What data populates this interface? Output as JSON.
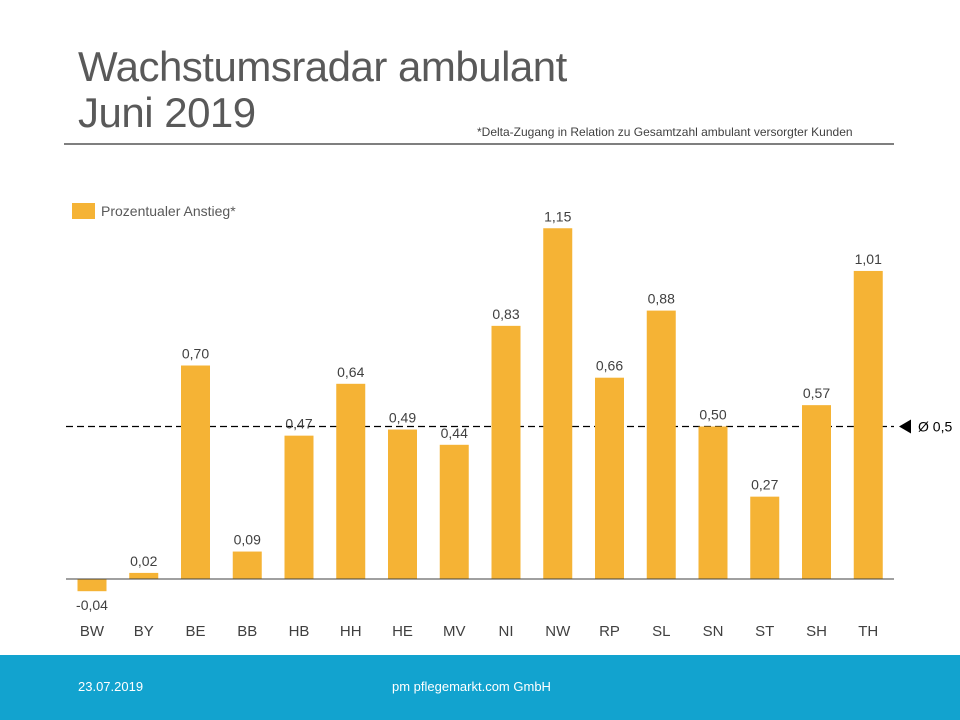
{
  "header": {
    "title_line1": "Wachstumsradar ambulant",
    "title_line2": "Juni 2019",
    "footnote": "*Delta-Zugang  in Relation zu Gesamtzahl ambulant versorgter  Kunden"
  },
  "colors": {
    "bar": "#F5B335",
    "footer": "#12A3CF",
    "text": "#404040"
  },
  "chart_data": {
    "type": "bar",
    "title": "Wachstumsradar ambulant Juni 2019",
    "xlabel": "",
    "ylabel": "",
    "ylim": [
      -0.1,
      1.25
    ],
    "grid": false,
    "legend": {
      "label": "Prozentualer Anstieg*",
      "position": "top-left"
    },
    "categories": [
      "BW",
      "BY",
      "BE",
      "BB",
      "HB",
      "HH",
      "HE",
      "MV",
      "NI",
      "NW",
      "RP",
      "SL",
      "SN",
      "ST",
      "SH",
      "TH"
    ],
    "series": [
      {
        "name": "Prozentualer Anstieg*",
        "values": [
          -0.04,
          0.02,
          0.7,
          0.09,
          0.47,
          0.64,
          0.49,
          0.44,
          0.83,
          1.15,
          0.66,
          0.88,
          0.5,
          0.27,
          0.57,
          1.01
        ],
        "labels": [
          "-0,04",
          "0,02",
          "0,70",
          "0,09",
          "0,47",
          "0,64",
          "0,49",
          "0,44",
          "0,83",
          "1,15",
          "0,66",
          "0,88",
          "0,50",
          "0,27",
          "0,57",
          "1,01"
        ]
      }
    ],
    "average": {
      "value": 0.5,
      "label": "Ø 0,5"
    }
  },
  "footer": {
    "date": "23.07.2019",
    "company": "pm pflegemarkt.com GmbH"
  }
}
